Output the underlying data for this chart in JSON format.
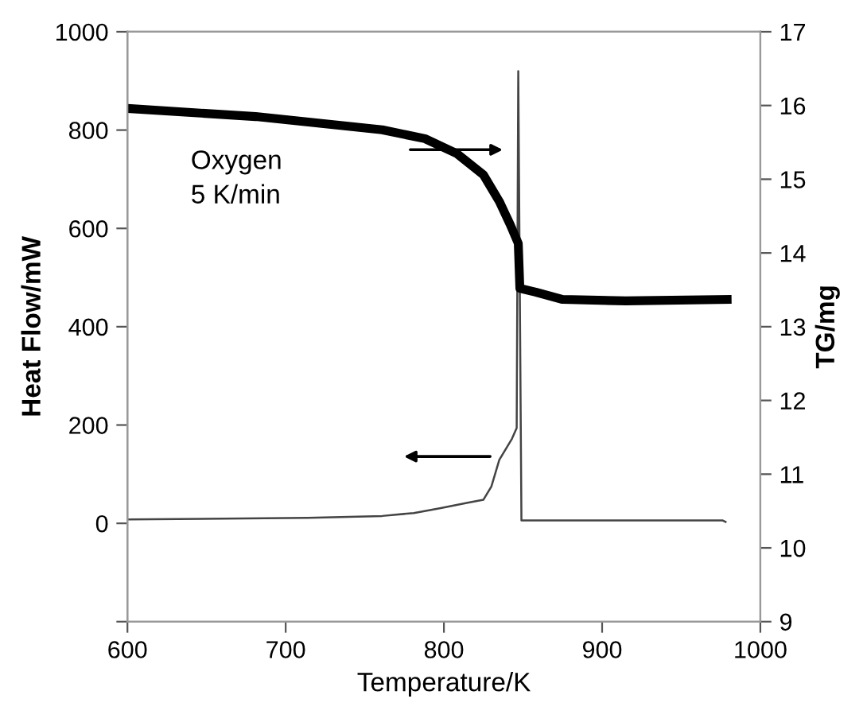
{
  "chart_data": {
    "type": "line",
    "xlabel": "Temperature/K",
    "ylabel": "Heat Flow/mW",
    "y2label": "TG/mg",
    "annotations": [
      "Oxygen\n5 K/min"
    ],
    "xlim": [
      600,
      1000
    ],
    "xticks": [
      600,
      700,
      800,
      900,
      1000
    ],
    "ylim": [
      -200,
      1000
    ],
    "yticks": [
      {
        "value": -200,
        "label": null
      },
      0,
      200,
      400,
      600,
      800,
      1000
    ],
    "y2lim": [
      9,
      17
    ],
    "y2ticks": [
      9,
      10,
      11,
      12,
      13,
      14,
      15,
      16,
      17
    ],
    "grid": false,
    "legend": false,
    "line_style": "solid",
    "marker": "none",
    "series": [
      {
        "color": "#000000",
        "axis": "y2",
        "x": [
          600,
          681,
          761,
          788,
          808,
          825,
          835,
          842,
          847,
          848,
          858,
          875,
          915,
          979
        ],
        "values": [
          15.96,
          15.85,
          15.67,
          15.55,
          15.35,
          15.06,
          14.7,
          14.38,
          14.13,
          13.52,
          13.47,
          13.37,
          13.35,
          13.37
        ]
      },
      {
        "color": "#444444",
        "axis": "y",
        "x": [
          600,
          714,
          761,
          781,
          798,
          815,
          825,
          830,
          835,
          843,
          846,
          847,
          849,
          850,
          877,
          976,
          978
        ],
        "values": [
          8,
          11,
          15,
          21,
          31,
          42,
          48,
          75,
          129,
          172,
          194,
          920,
          6,
          6,
          6,
          6,
          3
        ]
      }
    ]
  }
}
